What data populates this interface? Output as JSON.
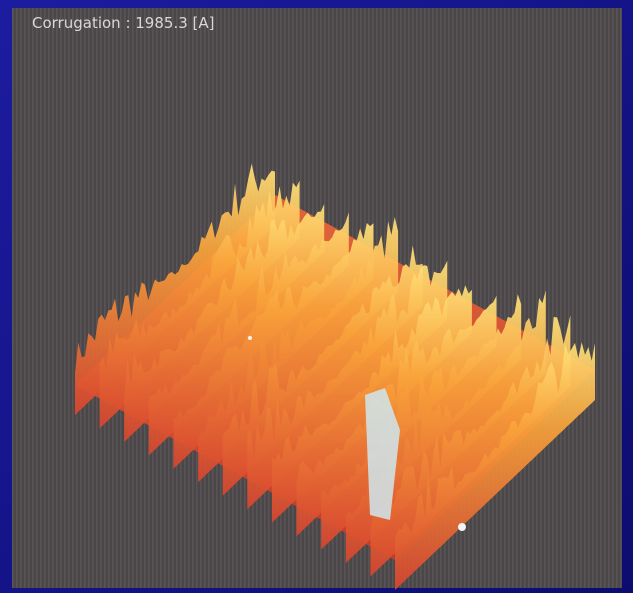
{
  "image": {
    "caption": "Corrugation : 1985.3 [A]"
  }
}
